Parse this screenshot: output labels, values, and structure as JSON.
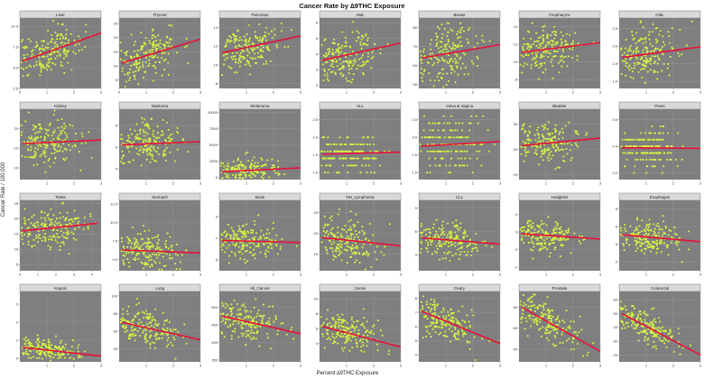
{
  "chart_data": {
    "type": "scatter",
    "title": "Cancer Rate by ∆9THC Exposure",
    "xlabel": "Percent ∆9THC Exposure",
    "ylabel": "Cancer Rate / 100,000",
    "point_color": "#d7f542",
    "trend_color": "#e8103a",
    "panel_bg_color": "#7f7f7f",
    "panels": [
      {
        "name": "Liver",
        "xticks": [
          0,
          1,
          2,
          3
        ],
        "xlim": [
          0,
          3
        ],
        "yticks": [
          2.5,
          5.0,
          7.5,
          10.0
        ],
        "ytick_labels": [
          "2.5",
          "5.0",
          "7.5",
          "10.0"
        ],
        "ylim": [
          2.5,
          11
        ],
        "trend": [
          [
            0.1,
            5.8
          ],
          [
            3.0,
            9.2
          ]
        ],
        "spread": 1.3,
        "xmean": 1.1
      },
      {
        "name": "Thyroid",
        "xticks": [
          0,
          1,
          2,
          3
        ],
        "xlim": [
          0,
          3
        ],
        "yticks": [
          5,
          10,
          15,
          20,
          25
        ],
        "ytick_labels": [
          "5",
          "10",
          "15",
          "20",
          "25"
        ],
        "ylim": [
          2,
          27
        ],
        "trend": [
          [
            0.1,
            11
          ],
          [
            3.0,
            19.5
          ]
        ],
        "spread": 4,
        "xmean": 1.1
      },
      {
        "name": "Pancreas",
        "xticks": [
          1,
          2,
          3
        ],
        "xlim": [
          0,
          3
        ],
        "yticks": [
          8,
          10,
          12,
          14
        ],
        "ytick_labels": [
          "8",
          "10",
          "12",
          "14"
        ],
        "ylim": [
          7.5,
          15
        ],
        "trend": [
          [
            0.1,
            11.3
          ],
          [
            3.0,
            13.1
          ]
        ],
        "spread": 1.1,
        "xmean": 1.1
      },
      {
        "name": "AML",
        "xticks": [
          1,
          2,
          3
        ],
        "xlim": [
          0,
          3
        ],
        "yticks": [
          2,
          3,
          4,
          5,
          6
        ],
        "ytick_labels": [
          "2",
          "3",
          "4",
          "5",
          "6"
        ],
        "ylim": [
          1.8,
          6.3
        ],
        "trend": [
          [
            0.1,
            3.6
          ],
          [
            3.0,
            4.7
          ]
        ],
        "spread": 0.8,
        "xmean": 1.1
      },
      {
        "name": "Breast",
        "xticks": [
          1,
          2,
          3
        ],
        "xlim": [
          0,
          3
        ],
        "yticks": [
          50,
          60,
          70,
          80
        ],
        "ytick_labels": [
          "50",
          "60",
          "70",
          "80"
        ],
        "ylim": [
          48,
          85
        ],
        "trend": [
          [
            0.1,
            64
          ],
          [
            3.0,
            71
          ]
        ],
        "spread": 8,
        "xmean": 1.1
      },
      {
        "name": "Oropharynx",
        "xticks": [
          1,
          2,
          3
        ],
        "xlim": [
          0,
          3
        ],
        "yticks": [
          8,
          10,
          12,
          14
        ],
        "ytick_labels": [
          "8",
          "10",
          "12",
          "14"
        ],
        "ylim": [
          7,
          15
        ],
        "trend": [
          [
            0.1,
            11.1
          ],
          [
            3.0,
            12.2
          ]
        ],
        "spread": 1.2,
        "xmean": 1.1
      },
      {
        "name": "CML",
        "xticks": [
          1,
          2,
          3
        ],
        "xlim": [
          0,
          3
        ],
        "yticks": [
          1.0,
          1.5,
          2.0,
          2.5
        ],
        "ytick_labels": [
          "1.0",
          "1.5",
          "2.0",
          "2.5"
        ],
        "ylim": [
          0.8,
          2.8
        ],
        "trend": [
          [
            0.1,
            1.68
          ],
          [
            3.0,
            1.98
          ]
        ],
        "spread": 0.35,
        "xmean": 1.1
      },
      {
        "name": "Kidney",
        "xticks": [
          1,
          2,
          3
        ],
        "xlim": [
          0,
          3
        ],
        "yticks": [
          10,
          15,
          20
        ],
        "ytick_labels": [
          "10",
          "15",
          "20"
        ],
        "ylim": [
          7,
          25
        ],
        "trend": [
          [
            0.1,
            16.2
          ],
          [
            3.0,
            17.1
          ]
        ],
        "spread": 3,
        "xmean": 1.1
      },
      {
        "name": "Myeloma",
        "xticks": [
          1,
          2,
          3
        ],
        "xlim": [
          0,
          3
        ],
        "yticks": [
          4,
          6,
          8
        ],
        "ytick_labels": [
          "4",
          "6",
          "8"
        ],
        "ylim": [
          3,
          9.5
        ],
        "trend": [
          [
            0.1,
            6.2
          ],
          [
            3.0,
            6.5
          ]
        ],
        "spread": 1,
        "xmean": 1.1
      },
      {
        "name": "Melanoma",
        "xticks": [
          1,
          2,
          3
        ],
        "xlim": [
          0,
          3
        ],
        "yticks": [
          0,
          2500,
          5000,
          7500,
          10000
        ],
        "ytick_labels": [
          "0",
          "2500",
          "5000",
          "7500",
          "10000"
        ],
        "ylim": [
          -300,
          10500
        ],
        "trend": [
          [
            0.1,
            900
          ],
          [
            3.0,
            1500
          ]
        ],
        "spread": 900,
        "xmean": 1.1
      },
      {
        "name": "ALL",
        "xticks": [
          1,
          2,
          3
        ],
        "xlim": [
          0,
          3
        ],
        "yticks": [
          1.0,
          1.5,
          2.0,
          2.5
        ],
        "ytick_labels": [
          "1.0",
          "1.5",
          "2.0",
          "2.5"
        ],
        "ylim": [
          0.8,
          2.8
        ],
        "trend": [
          [
            0.1,
            1.52
          ],
          [
            3.0,
            1.58
          ]
        ],
        "spread": 0.25,
        "xmean": 1.1,
        "bands": [
          1.0,
          1.2,
          1.4,
          1.6,
          1.8,
          2.0
        ]
      },
      {
        "name": "Vulva & Vagina",
        "xticks": [
          1,
          2,
          3
        ],
        "xlim": [
          0,
          3
        ],
        "yticks": [
          1.0,
          1.5,
          2.0,
          2.5
        ],
        "ytick_labels": [
          "1.0",
          "1.5",
          "2.0",
          "2.5"
        ],
        "ylim": [
          0.8,
          2.8
        ],
        "trend": [
          [
            0.1,
            1.75
          ],
          [
            3.0,
            1.88
          ]
        ],
        "spread": 0.4,
        "xmean": 1.1,
        "bands": [
          1.0,
          1.2,
          1.4,
          1.6,
          1.8,
          2.0,
          2.2,
          2.4,
          2.6
        ]
      },
      {
        "name": "Bladder",
        "xticks": [
          1,
          2,
          3
        ],
        "xlim": [
          0,
          3
        ],
        "yticks": [
          10,
          20,
          30
        ],
        "ytick_labels": [
          "10",
          "20",
          "30"
        ],
        "ylim": [
          8,
          36
        ],
        "trend": [
          [
            0.1,
            21.5
          ],
          [
            3.0,
            24.5
          ]
        ],
        "spread": 4,
        "xmean": 1.1
      },
      {
        "name": "Penis",
        "xticks": [
          1,
          2,
          3
        ],
        "xlim": [
          0,
          3
        ],
        "yticks": [
          0.2,
          0.4,
          0.6
        ],
        "ytick_labels": [
          "0.2",
          "0.4",
          "0.6"
        ],
        "ylim": [
          0.15,
          0.68
        ],
        "trend": [
          [
            0.1,
            0.39
          ],
          [
            3.0,
            0.385
          ]
        ],
        "spread": 0.07,
        "xmean": 1.1,
        "bands": [
          0.2,
          0.25,
          0.3,
          0.35,
          0.4,
          0.45,
          0.5,
          0.55
        ]
      },
      {
        "name": "Testis",
        "xticks": [
          0,
          1,
          2,
          3,
          4
        ],
        "xlim": [
          0,
          4.5
        ],
        "yticks": [
          5,
          10,
          15,
          20,
          25
        ],
        "ytick_labels": [
          "5",
          "10",
          "15",
          "20",
          "25"
        ],
        "ylim": [
          3,
          26
        ],
        "trend": [
          [
            0.1,
            16
          ],
          [
            4.3,
            18.5
          ]
        ],
        "spread": 3,
        "xmean": 1.8
      },
      {
        "name": "Stomach",
        "xticks": [
          1,
          2,
          3
        ],
        "xlim": [
          0,
          3
        ],
        "yticks": [
          5.0,
          7.5,
          10.0,
          12.5
        ],
        "ytick_labels": [
          "5.0",
          "7.5",
          "10.0",
          "12.5"
        ],
        "ylim": [
          3.5,
          13
        ],
        "trend": [
          [
            0.1,
            6.3
          ],
          [
            3.0,
            5.9
          ]
        ],
        "spread": 1.2,
        "xmean": 1.1
      },
      {
        "name": "Brain",
        "xticks": [
          1,
          2,
          3
        ],
        "xlim": [
          0,
          3
        ],
        "yticks": [
          5,
          7,
          9
        ],
        "ytick_labels": [
          "5",
          "7",
          "9"
        ],
        "ylim": [
          4,
          10.5
        ],
        "trend": [
          [
            0.1,
            6.8
          ],
          [
            3.0,
            6.6
          ]
        ],
        "spread": 0.8,
        "xmean": 1.1
      },
      {
        "name": "NH_Lymphoma",
        "xticks": [
          1,
          2,
          3
        ],
        "xlim": [
          0,
          3
        ],
        "yticks": [
          15,
          20,
          25
        ],
        "ytick_labels": [
          "15",
          "20",
          "25"
        ],
        "ylim": [
          11,
          28
        ],
        "trend": [
          [
            0.1,
            19
          ],
          [
            3.0,
            17
          ]
        ],
        "spread": 2.5,
        "xmean": 1.1
      },
      {
        "name": "CLL",
        "xticks": [
          1,
          2,
          3
        ],
        "xlim": [
          0,
          3
        ],
        "yticks": [
          3,
          6,
          9
        ],
        "ytick_labels": [
          "3",
          "6",
          "9"
        ],
        "ylim": [
          1,
          10
        ],
        "trend": [
          [
            0.1,
            5.2
          ],
          [
            3.0,
            4.4
          ]
        ],
        "spread": 1.2,
        "xmean": 1.1
      },
      {
        "name": "Hodgkins",
        "xticks": [
          1,
          2,
          3
        ],
        "xlim": [
          0,
          3
        ],
        "yticks": [
          1,
          2,
          3,
          4
        ],
        "ytick_labels": [
          "1",
          "2",
          "3",
          "4"
        ],
        "ylim": [
          0.8,
          4.8
        ],
        "trend": [
          [
            0.1,
            2.9
          ],
          [
            3.0,
            2.6
          ]
        ],
        "spread": 0.45,
        "xmean": 1.1
      },
      {
        "name": "Esophagus",
        "xticks": [
          1,
          2,
          3
        ],
        "xlim": [
          0,
          3
        ],
        "yticks": [
          2,
          4,
          6,
          8
        ],
        "ytick_labels": [
          "2",
          "4",
          "6",
          "8"
        ],
        "ylim": [
          1,
          9
        ],
        "trend": [
          [
            0.1,
            5.1
          ],
          [
            3.0,
            4.3
          ]
        ],
        "spread": 0.9,
        "xmean": 1.1
      },
      {
        "name": "Kaposi",
        "xticks": [
          1,
          2,
          3
        ],
        "xlim": [
          0,
          3
        ],
        "yticks": [
          0,
          1,
          2,
          3
        ],
        "ytick_labels": [
          "0",
          "1",
          "2",
          "3"
        ],
        "ylim": [
          -0.2,
          3.7
        ],
        "trend": [
          [
            0.1,
            0.6
          ],
          [
            3.0,
            0.12
          ]
        ],
        "spread": 0.3,
        "xmean": 1.1
      },
      {
        "name": "Lung",
        "xticks": [
          1,
          2,
          3
        ],
        "xlim": [
          0,
          3
        ],
        "yticks": [
          40,
          60,
          80,
          100
        ],
        "ytick_labels": [
          "40",
          "60",
          "80",
          "100"
        ],
        "ylim": [
          25,
          105
        ],
        "trend": [
          [
            0.1,
            70
          ],
          [
            3.0,
            50
          ]
        ],
        "spread": 10,
        "xmean": 1.1
      },
      {
        "name": "All_Cancer",
        "xticks": [
          1,
          2,
          3
        ],
        "xlim": [
          0,
          3
        ],
        "yticks": [
          350,
          400,
          450,
          500
        ],
        "ytick_labels": [
          "350",
          "400",
          "450",
          "500"
        ],
        "ylim": [
          345,
          545
        ],
        "trend": [
          [
            0.1,
            475
          ],
          [
            3.0,
            425
          ]
        ],
        "spread": 25,
        "xmean": 1.1
      },
      {
        "name": "Cervix",
        "xticks": [
          1,
          2,
          3
        ],
        "xlim": [
          0,
          3
        ],
        "yticks": [
          4,
          6,
          8,
          10
        ],
        "ytick_labels": [
          "4",
          "6",
          "8",
          "10"
        ],
        "ylim": [
          1.5,
          11
        ],
        "trend": [
          [
            0.1,
            6.3
          ],
          [
            3.0,
            3.5
          ]
        ],
        "spread": 1.2,
        "xmean": 1.1
      },
      {
        "name": "Ovary",
        "xticks": [
          1,
          2,
          3
        ],
        "xlim": [
          0,
          3
        ],
        "yticks": [
          4,
          5,
          6,
          7,
          8
        ],
        "ytick_labels": [
          "4",
          "5",
          "6",
          "7",
          "8"
        ],
        "ylim": [
          3.5,
          8.5
        ],
        "trend": [
          [
            0.1,
            7.1
          ],
          [
            3.0,
            4.8
          ]
        ],
        "spread": 0.7,
        "xmean": 1.1
      },
      {
        "name": "Prostate",
        "xticks": [
          1,
          2,
          3
        ],
        "xlim": [
          0,
          3
        ],
        "yticks": [
          40,
          60,
          80
        ],
        "ytick_labels": [
          "40",
          "60",
          "80"
        ],
        "ylim": [
          28,
          95
        ],
        "trend": [
          [
            0.1,
            80
          ],
          [
            3.0,
            38
          ]
        ],
        "spread": 9,
        "xmean": 1.1
      },
      {
        "name": "Colorectal",
        "xticks": [
          1,
          2,
          3
        ],
        "xlim": [
          0,
          3
        ],
        "yticks": [
          20,
          30,
          40,
          50,
          60
        ],
        "ytick_labels": [
          "20",
          "30",
          "40",
          "50",
          "60"
        ],
        "ylim": [
          15,
          66
        ],
        "trend": [
          [
            0.1,
            50
          ],
          [
            3.0,
            20
          ]
        ],
        "spread": 6,
        "xmean": 1.1
      }
    ]
  }
}
